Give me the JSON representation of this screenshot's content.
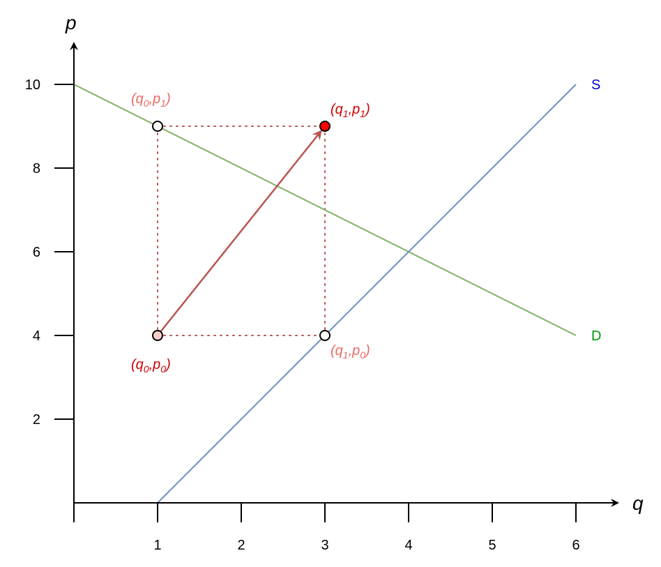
{
  "colors": {
    "demand": "#82b366",
    "supply": "#6c8ebf",
    "arrow": "#b85450",
    "guide": "#b85450",
    "label_dark": "#cc0000",
    "label_light": "#ea6b66",
    "demand_label": "#009900",
    "supply_label": "#0000cc",
    "point_filled": "#ff0000",
    "point_start": "#f8cecc"
  },
  "chart_data": {
    "type": "line",
    "xlabel": "q",
    "ylabel": "p",
    "xlim": [
      0,
      6
    ],
    "ylim": [
      0,
      10
    ],
    "xticks": [
      1,
      2,
      3,
      4,
      5,
      6
    ],
    "yticks": [
      2,
      4,
      6,
      8,
      10
    ],
    "grid": false,
    "series": [
      {
        "name": "D",
        "x": [
          0,
          6
        ],
        "y": [
          10,
          4
        ]
      },
      {
        "name": "S",
        "x": [
          1,
          6
        ],
        "y": [
          0,
          10
        ]
      }
    ],
    "points": [
      {
        "label": "(q0,p0)",
        "sym": "q",
        "sub1": "0",
        "sym2": "p",
        "sub2": "0",
        "x": 1,
        "y": 4,
        "style": "start"
      },
      {
        "label": "(q0,p1)",
        "sym": "q",
        "sub1": "0",
        "sym2": "p",
        "sub2": "1",
        "x": 1,
        "y": 9,
        "style": "open"
      },
      {
        "label": "(q1,p0)",
        "sym": "q",
        "sub1": "1",
        "sym2": "p",
        "sub2": "0",
        "x": 3,
        "y": 4,
        "style": "open"
      },
      {
        "label": "(q1,p1)",
        "sym": "q",
        "sub1": "1",
        "sym2": "p",
        "sub2": "1",
        "x": 3,
        "y": 9,
        "style": "filled"
      }
    ],
    "arrow": {
      "from": [
        1,
        4
      ],
      "to": [
        3,
        9
      ]
    },
    "guides": [
      {
        "from": [
          1,
          9
        ],
        "to": [
          3,
          9
        ]
      },
      {
        "from": [
          1,
          4
        ],
        "to": [
          3,
          4
        ]
      },
      {
        "from": [
          1,
          4
        ],
        "to": [
          1,
          9
        ]
      },
      {
        "from": [
          3,
          4
        ],
        "to": [
          3,
          9
        ]
      }
    ]
  }
}
